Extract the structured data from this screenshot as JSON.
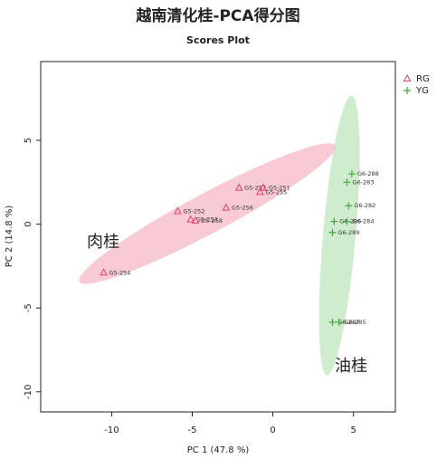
{
  "chart_data": {
    "type": "scatter",
    "title": "越南清化桂-PCA得分图",
    "subtitle": "Scores Plot",
    "x_label": "PC 1 (47.8 %)",
    "y_label": "PC 2 (14.8 %)",
    "xlim": [
      -14.4,
      7.6
    ],
    "ylim": [
      -11.2,
      9.7
    ],
    "xticks": [
      -10,
      -5,
      0,
      5
    ],
    "yticks": [
      -10,
      -5,
      0,
      5
    ],
    "grid": false,
    "legend": "upper right",
    "annotations": [
      {
        "text": "肉桂",
        "color": "#c00000"
      },
      {
        "text": "油桂",
        "color": "#4a5a1a"
      }
    ],
    "series": [
      {
        "name": "RG",
        "color": "#e0406a",
        "marker": "triangle",
        "labels": [
          "G5-252",
          "G5-253",
          "G5-258",
          "G5-256",
          "G5-257",
          "G5-251",
          "G5-255",
          "G5-254"
        ],
        "x": [
          -5.9,
          -5.1,
          -4.8,
          -2.9,
          -2.1,
          -0.6,
          -0.8,
          -10.5
        ],
        "y": [
          0.76,
          0.27,
          0.2,
          0.97,
          2.16,
          2.16,
          1.9,
          -2.9
        ]
      },
      {
        "name": "YG",
        "color": "#3caa3c",
        "marker": "plus",
        "labels": [
          "G6-288",
          "G6-283",
          "G6-282",
          "G6-286",
          "G6-284",
          "G6-289",
          "G6-287",
          "G6-285"
        ],
        "x": [
          4.9,
          4.6,
          4.7,
          3.8,
          4.6,
          3.7,
          3.7,
          4.1
        ],
        "y": [
          3.0,
          2.5,
          1.1,
          0.16,
          0.16,
          -0.5,
          -5.85,
          -5.85
        ]
      }
    ]
  }
}
